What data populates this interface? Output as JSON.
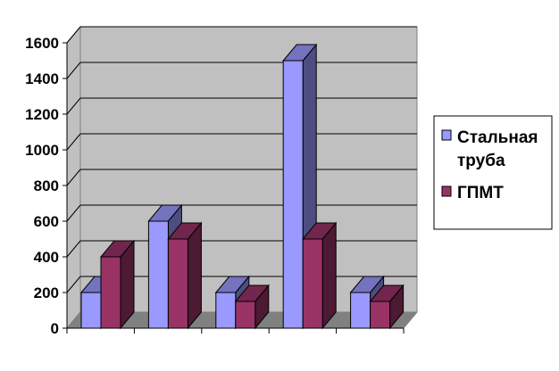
{
  "chart_data": {
    "type": "bar",
    "title": "",
    "xlabel": "",
    "ylabel": "",
    "categories": [
      "",
      "",
      "",
      "",
      ""
    ],
    "ylim": [
      0,
      1600
    ],
    "yticks": [
      "0",
      "200",
      "400",
      "600",
      "800",
      "1000",
      "1200",
      "1400",
      "1600"
    ],
    "grid": true,
    "legend": {
      "position": "right"
    },
    "series": [
      {
        "name": "Стальная труба",
        "color": "#9999ff",
        "values": [
          200,
          600,
          200,
          1500,
          200
        ]
      },
      {
        "name": "ГПМТ",
        "color": "#993366",
        "values": [
          400,
          500,
          150,
          500,
          150
        ]
      }
    ]
  }
}
